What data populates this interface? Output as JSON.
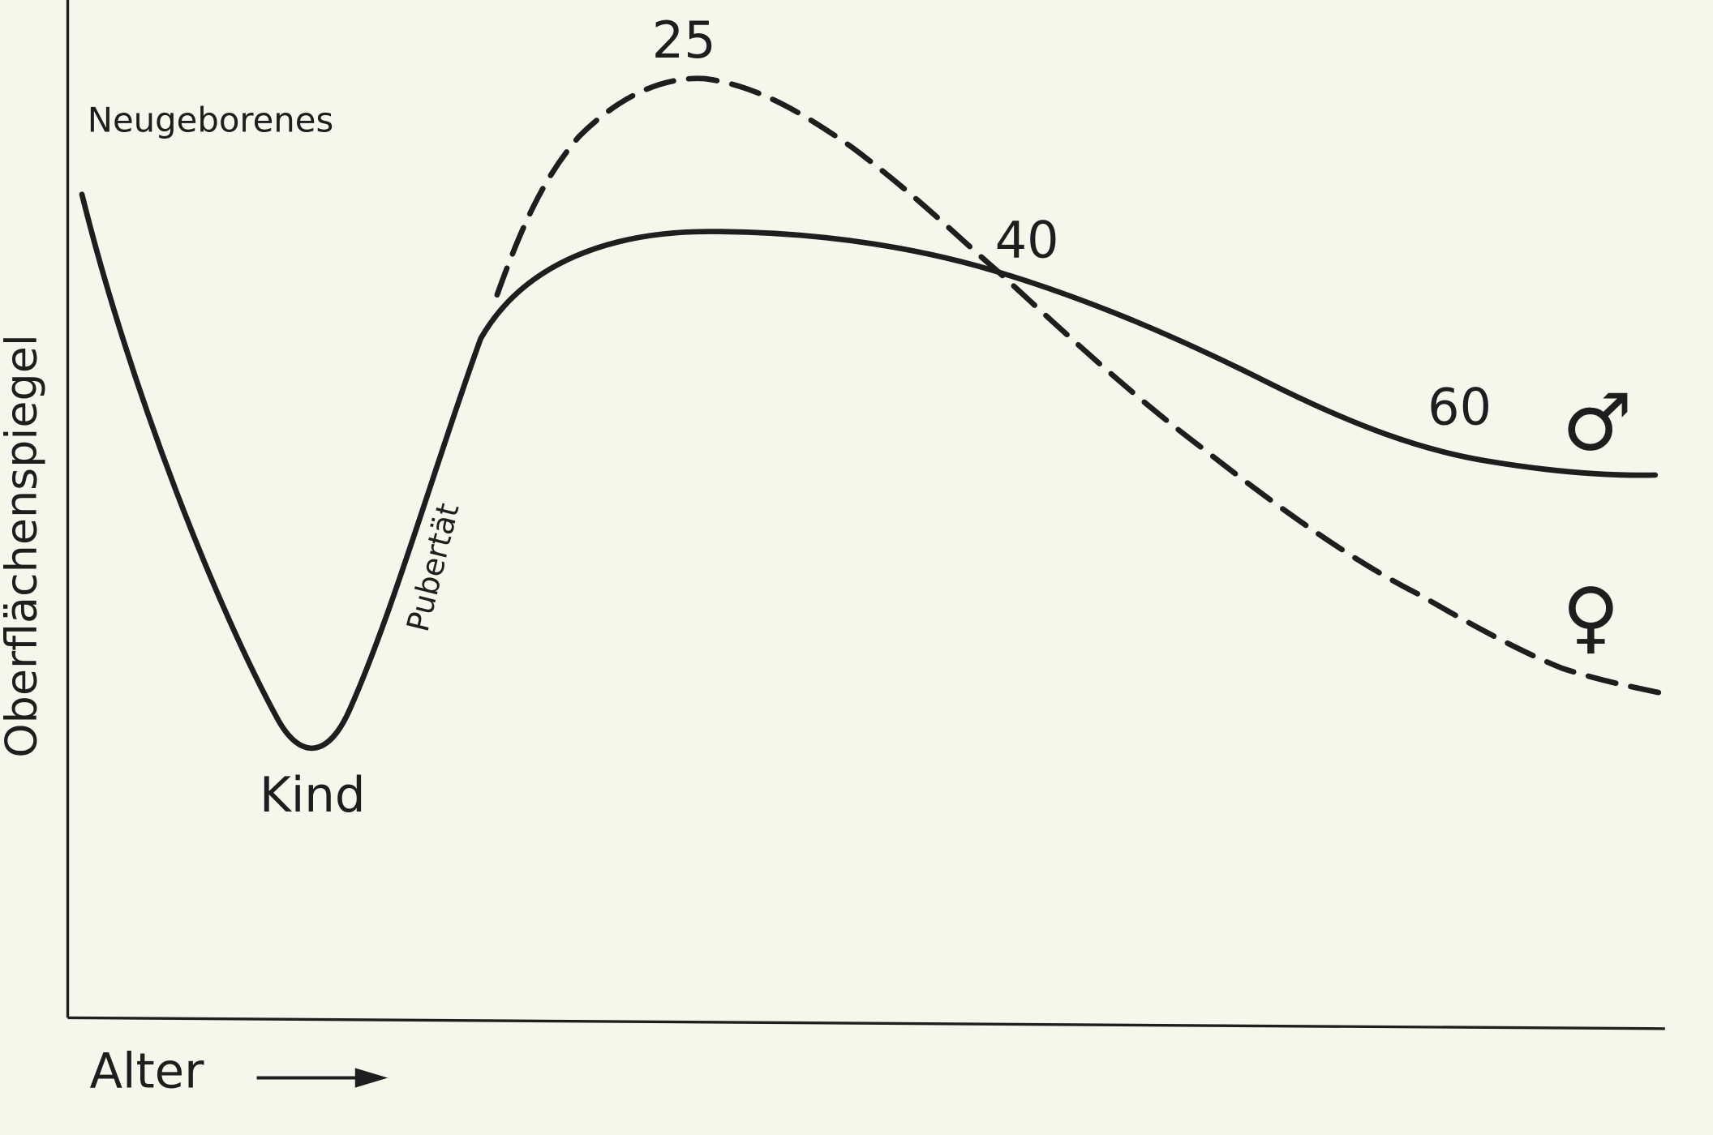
{
  "y_axis_label": "Oberflächenspiegel",
  "x_axis_label": "Alter",
  "annotations": {
    "newborn": "Neugeborenes",
    "child": "Kind",
    "puberty": "Pubertät",
    "age_25": "25",
    "age_40": "40",
    "age_60": "60"
  },
  "legend": {
    "male": "♂",
    "female": "♀"
  }
}
